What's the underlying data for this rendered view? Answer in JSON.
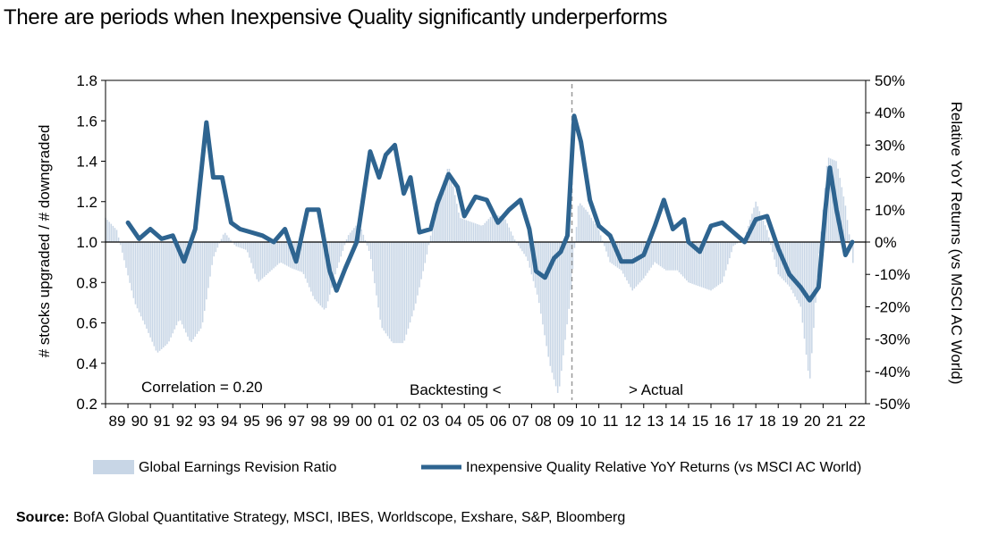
{
  "title": "There are periods when Inexpensive Quality significantly underperforms",
  "source": {
    "label": "Source:",
    "text": "BofA Global Quantitative Strategy, MSCI, IBES, Worldscope, Exshare, S&P, Bloomberg"
  },
  "chart_data": {
    "type": "bar+line",
    "ylabel_left": "# stocks upgraded / # downgraded",
    "ylabel_right": "Relative YoY Returns (vs MSCI AC World)",
    "ylim_left": [
      0.2,
      1.8
    ],
    "ylim_right": [
      -50,
      50
    ],
    "left_ticks": [
      "1.8",
      "1.6",
      "1.4",
      "1.2",
      "1.0",
      "0.8",
      "0.6",
      "0.4",
      "0.2"
    ],
    "right_ticks": [
      "50%",
      "40%",
      "30%",
      "20%",
      "10%",
      "0%",
      "-10%",
      "-20%",
      "-30%",
      "-40%",
      "-50%"
    ],
    "x_labels": [
      "89",
      "90",
      "91",
      "92",
      "93",
      "94",
      "95",
      "96",
      "97",
      "98",
      "99",
      "00",
      "01",
      "02",
      "03",
      "04",
      "05",
      "06",
      "07",
      "08",
      "09",
      "10",
      "11",
      "12",
      "13",
      "14",
      "15",
      "16",
      "17",
      "18",
      "19",
      "20",
      "21",
      "22"
    ],
    "bar_baseline": 1.0,
    "annotations": {
      "correlation": "Correlation = 0.20",
      "backtesting": "Backtesting <",
      "actual": "> Actual"
    },
    "divider_year": 2009.8,
    "series": [
      {
        "name": "Global Earnings Revision Ratio",
        "kind": "bar",
        "color": "#c8d6e6",
        "points": [
          [
            1989.0,
            1.12
          ],
          [
            1989.5,
            1.06
          ],
          [
            1989.9,
            0.88
          ],
          [
            1990.3,
            0.7
          ],
          [
            1990.8,
            0.58
          ],
          [
            1991.3,
            0.45
          ],
          [
            1991.8,
            0.5
          ],
          [
            1992.3,
            0.62
          ],
          [
            1992.8,
            0.5
          ],
          [
            1993.3,
            0.58
          ],
          [
            1993.8,
            0.92
          ],
          [
            1994.3,
            1.05
          ],
          [
            1994.8,
            0.98
          ],
          [
            1995.3,
            0.96
          ],
          [
            1995.8,
            0.8
          ],
          [
            1996.3,
            0.85
          ],
          [
            1996.8,
            0.9
          ],
          [
            1997.3,
            0.87
          ],
          [
            1997.8,
            0.85
          ],
          [
            1998.3,
            0.72
          ],
          [
            1998.8,
            0.66
          ],
          [
            1999.3,
            0.86
          ],
          [
            1999.8,
            1.03
          ],
          [
            2000.3,
            1.1
          ],
          [
            2000.8,
            0.94
          ],
          [
            2001.3,
            0.58
          ],
          [
            2001.8,
            0.5
          ],
          [
            2002.3,
            0.5
          ],
          [
            2002.8,
            0.68
          ],
          [
            2003.3,
            0.92
          ],
          [
            2003.8,
            1.2
          ],
          [
            2004.3,
            1.38
          ],
          [
            2004.8,
            1.12
          ],
          [
            2005.3,
            1.1
          ],
          [
            2005.8,
            1.08
          ],
          [
            2006.3,
            1.14
          ],
          [
            2006.8,
            1.12
          ],
          [
            2007.3,
            1.0
          ],
          [
            2007.8,
            0.92
          ],
          [
            2008.3,
            0.72
          ],
          [
            2008.8,
            0.4
          ],
          [
            2009.2,
            0.24
          ],
          [
            2009.7,
            0.7
          ],
          [
            2010.1,
            1.2
          ],
          [
            2010.5,
            1.15
          ],
          [
            2011.0,
            1.06
          ],
          [
            2011.5,
            0.9
          ],
          [
            2012.0,
            0.86
          ],
          [
            2012.5,
            0.76
          ],
          [
            2013.0,
            0.82
          ],
          [
            2013.5,
            0.9
          ],
          [
            2014.0,
            0.86
          ],
          [
            2014.5,
            0.86
          ],
          [
            2015.0,
            0.8
          ],
          [
            2015.5,
            0.78
          ],
          [
            2016.0,
            0.76
          ],
          [
            2016.5,
            0.8
          ],
          [
            2017.0,
            0.98
          ],
          [
            2017.5,
            1.02
          ],
          [
            2018.0,
            1.2
          ],
          [
            2018.5,
            1.06
          ],
          [
            2019.0,
            0.84
          ],
          [
            2019.5,
            0.78
          ],
          [
            2020.0,
            0.68
          ],
          [
            2020.4,
            0.3
          ],
          [
            2020.8,
            0.9
          ],
          [
            2021.2,
            1.42
          ],
          [
            2021.6,
            1.4
          ],
          [
            2022.0,
            1.18
          ],
          [
            2022.4,
            0.84
          ]
        ]
      },
      {
        "name": "Inexpensive Quality Relative YoY Returns (vs MSCI AC World)",
        "kind": "line",
        "axis": "right",
        "color": "#2e6490",
        "points": [
          [
            1990.0,
            6
          ],
          [
            1990.5,
            1
          ],
          [
            1991.0,
            4
          ],
          [
            1991.5,
            1
          ],
          [
            1992.0,
            2
          ],
          [
            1992.5,
            -6
          ],
          [
            1993.0,
            4
          ],
          [
            1993.5,
            37
          ],
          [
            1993.8,
            20
          ],
          [
            1994.2,
            20
          ],
          [
            1994.6,
            6
          ],
          [
            1995.0,
            4
          ],
          [
            1995.5,
            3
          ],
          [
            1996.0,
            2
          ],
          [
            1996.5,
            0
          ],
          [
            1997.0,
            4
          ],
          [
            1997.5,
            -6
          ],
          [
            1998.0,
            10
          ],
          [
            1998.5,
            10
          ],
          [
            1999.0,
            -9
          ],
          [
            1999.3,
            -15
          ],
          [
            1999.7,
            -8
          ],
          [
            2000.2,
            0
          ],
          [
            2000.8,
            28
          ],
          [
            2001.2,
            20
          ],
          [
            2001.5,
            27
          ],
          [
            2001.9,
            30
          ],
          [
            2002.3,
            15
          ],
          [
            2002.6,
            20
          ],
          [
            2003.0,
            3
          ],
          [
            2003.5,
            4
          ],
          [
            2003.8,
            12
          ],
          [
            2004.3,
            21
          ],
          [
            2004.7,
            17
          ],
          [
            2005.0,
            8
          ],
          [
            2005.5,
            14
          ],
          [
            2006.0,
            13
          ],
          [
            2006.5,
            6
          ],
          [
            2007.0,
            10
          ],
          [
            2007.5,
            13
          ],
          [
            2007.9,
            4
          ],
          [
            2008.2,
            -9
          ],
          [
            2008.6,
            -11
          ],
          [
            2009.0,
            -5
          ],
          [
            2009.3,
            -3
          ],
          [
            2009.6,
            2
          ],
          [
            2009.9,
            39
          ],
          [
            2010.2,
            31
          ],
          [
            2010.6,
            13
          ],
          [
            2011.0,
            5
          ],
          [
            2011.5,
            2
          ],
          [
            2012.0,
            -6
          ],
          [
            2012.5,
            -6
          ],
          [
            2013.0,
            -4
          ],
          [
            2013.5,
            5
          ],
          [
            2013.9,
            13
          ],
          [
            2014.3,
            4
          ],
          [
            2014.8,
            7
          ],
          [
            2015.0,
            0
          ],
          [
            2015.5,
            -3
          ],
          [
            2016.0,
            5
          ],
          [
            2016.5,
            6
          ],
          [
            2017.0,
            3
          ],
          [
            2017.5,
            0
          ],
          [
            2018.0,
            7
          ],
          [
            2018.5,
            8
          ],
          [
            2019.0,
            -2
          ],
          [
            2019.5,
            -10
          ],
          [
            2020.0,
            -14
          ],
          [
            2020.4,
            -18
          ],
          [
            2020.8,
            -14
          ],
          [
            2021.1,
            10
          ],
          [
            2021.3,
            23
          ],
          [
            2021.6,
            10
          ],
          [
            2022.0,
            -4
          ],
          [
            2022.3,
            0
          ]
        ]
      }
    ],
    "legend": [
      {
        "label": "Global Earnings Revision Ratio",
        "kind": "bar"
      },
      {
        "label": "Inexpensive Quality Relative YoY Returns (vs MSCI AC World)",
        "kind": "line"
      }
    ]
  }
}
